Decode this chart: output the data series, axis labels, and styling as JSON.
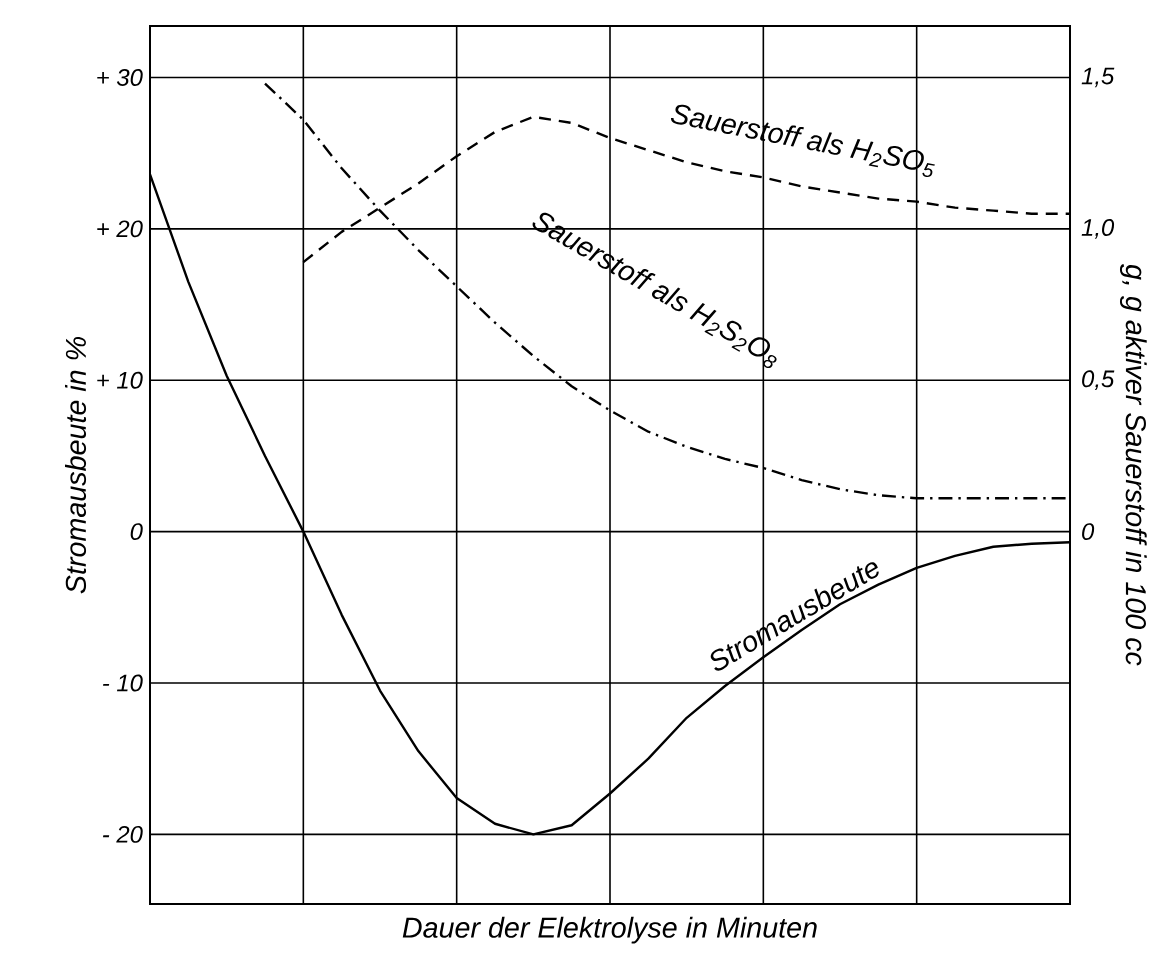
{
  "chart_data": {
    "type": "line",
    "xlabel": "Dauer der Elektrolyse in Minuten",
    "ylabel": "Stromausbeute in %",
    "y2label": "g, g aktiver Sauerstoff in 100 cc",
    "categories": [
      null,
      null,
      null,
      null,
      null,
      null,
      null,
      null,
      null,
      null,
      null,
      null,
      null,
      null,
      null,
      null,
      null,
      null,
      null,
      null,
      null,
      null,
      null,
      null,
      null
    ],
    "ylim": [
      -24.6,
      33.4
    ],
    "yticks": [
      {
        "value": -20,
        "label": "- 20"
      },
      {
        "value": -10,
        "label": "- 10"
      },
      {
        "value": 0,
        "label": "0"
      },
      {
        "value": 10,
        "label": "+ 10"
      },
      {
        "value": 20,
        "label": "+ 20"
      },
      {
        "value": 30,
        "label": "+ 30"
      }
    ],
    "y2lim": [
      -1.23,
      1.67
    ],
    "y2ticks": [
      {
        "value": 0,
        "label": "0"
      },
      {
        "value": 0.5,
        "label": "0,5"
      },
      {
        "value": 1.0,
        "label": "1,0"
      },
      {
        "value": 1.5,
        "label": "1,5"
      }
    ],
    "tick_labels": "y",
    "grid": true,
    "series": [
      {
        "name": "Stromausbeute",
        "color": "#000000",
        "line_style": "solid",
        "values": [
          23.6,
          16.5,
          10.3,
          5,
          0,
          -5.5,
          -10.5,
          -14.5,
          -17.6,
          -19.3,
          -20,
          -19.4,
          -17.3,
          -15,
          -12.3,
          -10.2,
          -8.3,
          -6.5,
          -4.8,
          -3.5,
          -2.4,
          -1.6,
          -1.0,
          -0.8,
          -0.7
        ]
      },
      {
        "name": "Sauerstoff als H$_{2}$SO$_{5}$",
        "color": "#000000",
        "line_style": "dashed",
        "axis": "y2",
        "values": [
          null,
          null,
          null,
          null,
          0.89,
          0.99,
          1.07,
          1.15,
          1.24,
          1.32,
          1.37,
          1.35,
          1.3,
          1.26,
          1.22,
          1.19,
          1.17,
          1.14,
          1.12,
          1.1,
          1.09,
          1.07,
          1.06,
          1.05,
          1.05
        ]
      },
      {
        "name": "Sauerstoff als H$_{2}$S$_{2}$O$_{8}$",
        "color": "#000000",
        "line_style": "dashdot",
        "axis": "y2",
        "values": [
          null,
          null,
          null,
          1.48,
          1.36,
          1.2,
          1.06,
          0.93,
          0.81,
          0.69,
          0.58,
          0.48,
          0.4,
          0.33,
          0.28,
          0.24,
          0.21,
          0.17,
          0.14,
          0.12,
          0.11,
          0.11,
          0.11,
          0.11,
          0.11
        ]
      }
    ]
  }
}
